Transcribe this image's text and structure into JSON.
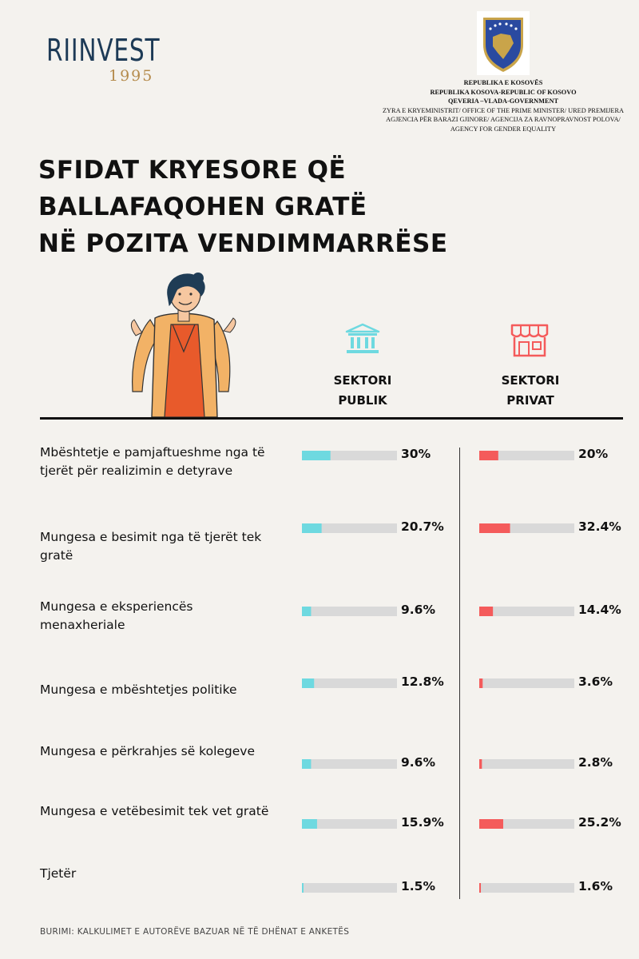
{
  "logo": {
    "word": "RIINVEST",
    "year": "1995"
  },
  "government": {
    "line1": "REPUBLIKA E KOSOVËS",
    "line2": "REPUBLIKA KOSOVA-REPUBLIC OF KOSOVO",
    "line3": "QEVERIA –VLADA-GOVERNMENT",
    "line4": "ZYRA E KRYEMINISTRIT/ OFFICE OF THE PRIME MINISTER/ URED PREMIJERA",
    "line5": "AGJENCIA PËR BARAZI GJINORE/ AGENCIJA ZA RAVNOPRAVNOST POLOVA/",
    "line6": "AGENCY FOR GENDER EQUALITY"
  },
  "colors": {
    "public": "#6ed9e0",
    "private": "#f45b5b",
    "track": "#d9d9d9",
    "logo_dark": "#1d3a56",
    "logo_gold": "#b58b4c"
  },
  "chart_data": {
    "type": "bar",
    "title_lines": [
      "SFIDAT KRYESORE QË",
      "BALLAFAQOHEN GRATË",
      "NË POZITA VENDIMMARRËSE"
    ],
    "categories": [
      "Mbështetje e pamjaftueshme nga të tjerët për realizimin e detyrave",
      "Mungesa e besimit nga të tjerët tek gratë",
      "Mungesa e eksperiencës menaxheriale",
      "Mungesa e mbështetjes politike",
      "Mungesa e përkrahjes së kolegeve",
      "Mungesa e vetëbesimit tek vet gratë",
      "Tjetër"
    ],
    "series": [
      {
        "name": "SEKTORI PUBLIK",
        "values": [
          30,
          20.7,
          9.6,
          12.8,
          9.6,
          15.9,
          1.5
        ],
        "labels": [
          "30%",
          "20.7%",
          "9.6%",
          "12.8%",
          "9.6%",
          "15.9%",
          "1.5%"
        ],
        "icon": "institution-icon"
      },
      {
        "name": "SEKTORI PRIVAT",
        "values": [
          20,
          32.4,
          14.4,
          3.6,
          2.8,
          25.2,
          1.6
        ],
        "labels": [
          "20%",
          "32.4%",
          "14.4%",
          "3.6%",
          "2.8%",
          "25.2%",
          "1.6%"
        ],
        "icon": "shop-icon"
      }
    ],
    "xlim": [
      0,
      100
    ],
    "source": "BURIMI: KALKULIMET E AUTORËVE BAZUAR NË TË DHËNAT E ANKETËS"
  }
}
